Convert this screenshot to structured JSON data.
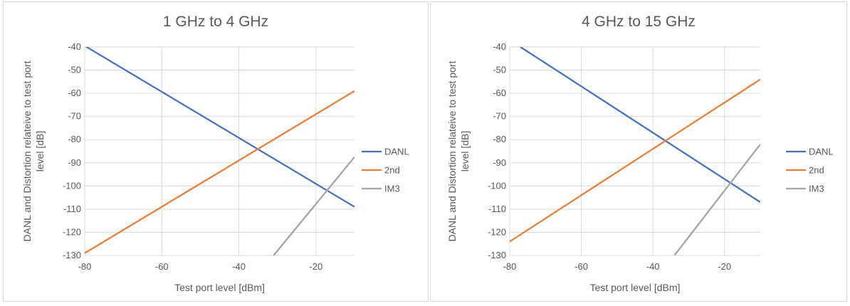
{
  "chart_data": [
    {
      "type": "line",
      "title": "1 GHz to 4 GHz",
      "xlabel": "Test port level [dBm]",
      "ylabel": "DANL  and Distortion relateive to test port level [dB]",
      "xlim": [
        -80,
        -10
      ],
      "ylim": [
        -130,
        -40
      ],
      "xticks": [
        -80,
        -60,
        -40,
        -20
      ],
      "yticks": [
        -40,
        -50,
        -60,
        -70,
        -80,
        -90,
        -100,
        -110,
        -120,
        -130
      ],
      "grid": true,
      "legend": "right",
      "series": [
        {
          "name": "DANL",
          "color": "#4472c4",
          "x": [
            -80,
            -10
          ],
          "y": [
            -39.5,
            -109
          ]
        },
        {
          "name": "2nd",
          "color": "#ed7d31",
          "x": [
            -80,
            -10
          ],
          "y": [
            -129,
            -59
          ]
        },
        {
          "name": "IM3",
          "color": "#a5a5a5",
          "x": [
            -31,
            -10
          ],
          "y": [
            -130,
            -87.5
          ]
        }
      ]
    },
    {
      "type": "line",
      "title": "4 GHz to 15 GHz",
      "xlabel": "Test port level [dBm]",
      "ylabel": "DANL  and Distortion relateive to test port level [dB]",
      "xlim": [
        -80,
        -10
      ],
      "ylim": [
        -130,
        -40
      ],
      "xticks": [
        -80,
        -60,
        -40,
        -20
      ],
      "yticks": [
        -40,
        -50,
        -60,
        -70,
        -80,
        -90,
        -100,
        -110,
        -120,
        -130
      ],
      "grid": true,
      "legend": "right",
      "series": [
        {
          "name": "DANL",
          "color": "#4472c4",
          "x": [
            -77,
            -10
          ],
          "y": [
            -40,
            -107
          ]
        },
        {
          "name": "2nd",
          "color": "#ed7d31",
          "x": [
            -80,
            -10
          ],
          "y": [
            -124,
            -54
          ]
        },
        {
          "name": "IM3",
          "color": "#a5a5a5",
          "x": [
            -34,
            -10
          ],
          "y": [
            -130,
            -82
          ]
        }
      ]
    }
  ]
}
